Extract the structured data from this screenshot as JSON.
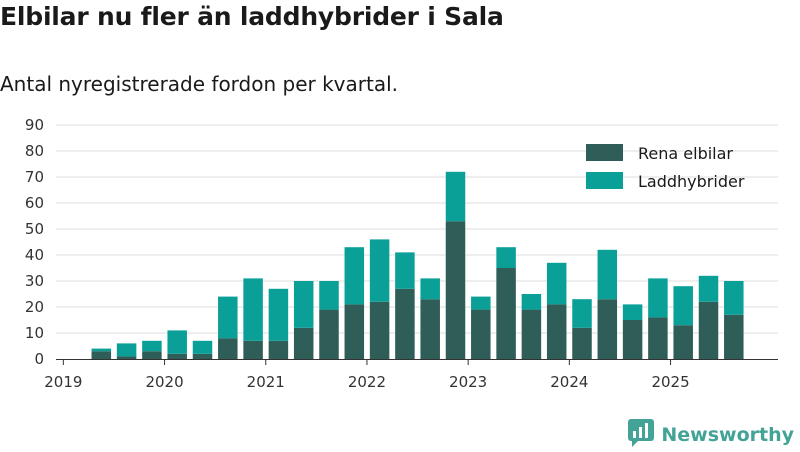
{
  "title": "Elbilar nu fler än laddhybrider i Sala",
  "subtitle": "Antal nyregistrerade fordon per kvartal.",
  "brand": {
    "name": "Newsworthy",
    "icon": "newsworthy-logo-icon"
  },
  "colors": {
    "electric": "#2f5d57",
    "hybrid": "#0aa097",
    "grid": "#dddddd",
    "axis": "#333333",
    "brand": "#43a396"
  },
  "chart_data": {
    "type": "bar",
    "stacked": true,
    "title": "Elbilar nu fler än laddhybrider i Sala",
    "subtitle": "Antal nyregistrerade fordon per kvartal.",
    "xlabel": "",
    "ylabel": "",
    "ylim": [
      0,
      90
    ],
    "yticks": [
      "0",
      "10",
      "20",
      "30",
      "40",
      "50",
      "60",
      "70",
      "80",
      "90"
    ],
    "legend_position": "top-right",
    "grid": true,
    "categories": [
      "2019 Q1",
      "2019 Q2",
      "2019 Q3",
      "2019 Q4",
      "2020 Q1",
      "2020 Q2",
      "2020 Q3",
      "2020 Q4",
      "2021 Q1",
      "2021 Q2",
      "2021 Q3",
      "2021 Q4",
      "2022 Q1",
      "2022 Q2",
      "2022 Q3",
      "2022 Q4",
      "2023 Q1",
      "2023 Q2",
      "2023 Q3",
      "2023 Q4",
      "2024 Q1",
      "2024 Q2",
      "2024 Q3",
      "2024 Q4",
      "2025 Q1",
      "2025 Q2",
      "2025 Q3"
    ],
    "x_tick_labels": [
      "2019",
      "2020",
      "2021",
      "2022",
      "2023",
      "2024",
      "2025"
    ],
    "series": [
      {
        "name": "Rena elbilar",
        "values": [
          0,
          3,
          1,
          3,
          2,
          2,
          8,
          7,
          7,
          12,
          19,
          21,
          22,
          27,
          23,
          53,
          19,
          35,
          19,
          21,
          12,
          23,
          15,
          16,
          13,
          22,
          17
        ]
      },
      {
        "name": "Laddhybrider",
        "values": [
          0,
          1,
          5,
          4,
          9,
          5,
          16,
          24,
          20,
          18,
          11,
          22,
          24,
          14,
          8,
          19,
          5,
          8,
          6,
          16,
          11,
          19,
          6,
          15,
          15,
          10,
          13
        ]
      }
    ]
  }
}
